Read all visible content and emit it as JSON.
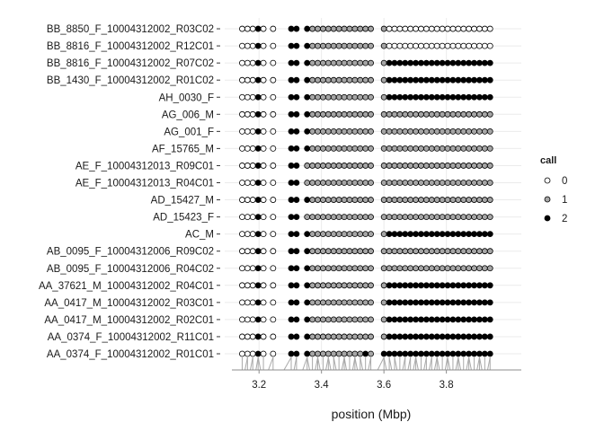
{
  "chart_data": {
    "type": "scatter",
    "xlabel": "position (Mbp)",
    "ylabel": "",
    "x_ticks": [
      "3.2",
      "3.4",
      "3.6",
      "3.8"
    ],
    "x_tick_values": [
      3.2,
      3.4,
      3.6,
      3.8
    ],
    "xlim": [
      3.09,
      4.04
    ],
    "grid": true,
    "legend": {
      "title": "call",
      "position": "right",
      "entries": [
        "0",
        "1",
        "2"
      ]
    },
    "samples": [
      "AA_0374_F_10004312002_R01C01",
      "AA_0374_F_10004312002_R11C01",
      "AA_0417_M_10004312002_R02C01",
      "AA_0417_M_10004312002_R03C01",
      "AA_37621_M_10004312002_R04C01",
      "AB_0095_F_10004312006_R04C02",
      "AB_0095_F_10004312006_R09C02",
      "AC_M",
      "AD_15423_F",
      "AD_15427_M",
      "AE_F_10004312013_R04C01",
      "AE_F_10004312013_R09C01",
      "AF_15765_M",
      "AG_001_F",
      "AG_006_M",
      "AH_0030_F",
      "BB_1430_F_10004312002_R01C02",
      "BB_8816_F_10004312002_R07C02",
      "BB_8816_F_10004312002_R12C01",
      "BB_8850_F_10004312002_R03C02"
    ],
    "marker_positions": [
      3.146,
      3.163,
      3.18,
      3.197,
      3.214,
      3.245,
      3.303,
      3.32,
      3.354,
      3.371,
      3.388,
      3.405,
      3.422,
      3.439,
      3.456,
      3.473,
      3.49,
      3.507,
      3.524,
      3.541,
      3.558,
      3.6,
      3.617,
      3.634,
      3.651,
      3.668,
      3.685,
      3.702,
      3.719,
      3.736,
      3.753,
      3.77,
      3.787,
      3.804,
      3.821,
      3.838,
      3.855,
      3.872,
      3.889,
      3.906,
      3.923,
      3.94
    ],
    "calls": [
      "000200222111111111121222222222222222222222",
      "000200222111111111111122222222222222222222",
      "000200222111111111111122222222222222222222",
      "000200222111111111111122222222222222222222",
      "000200222111111111111122222222222222222222",
      "000200222111111111111111111111111111111111",
      "000200222111111111111111111111111111111111",
      "000200222111111111111122222222222222222222",
      "000200221111111111111111111111111111111111",
      "000200222111111111111111111111111111111111",
      "000200221111111111111111111111111111111111",
      "000200221111111111111111111111111111111111",
      "000200222111111111111111111111111111111111",
      "000200222111111111111111111111111111111111",
      "000200222111111111111111111111111111111111",
      "000200222111111111111122222222222222222222",
      "000200222111111111111122222222222222222222",
      "000200222111111111111122222222222222222222",
      "000200222111111111111100000000000000000000",
      "000200222111111111111100000000000000000000"
    ],
    "rug_positions": [
      3.146,
      3.155,
      3.163,
      3.172,
      3.18,
      3.19,
      3.197,
      3.205,
      3.214,
      3.23,
      3.245,
      3.28,
      3.303,
      3.312,
      3.32,
      3.34,
      3.354,
      3.362,
      3.371,
      3.38,
      3.388,
      3.396,
      3.405,
      3.414,
      3.422,
      3.43,
      3.439,
      3.447,
      3.456,
      3.465,
      3.473,
      3.48,
      3.49,
      3.5,
      3.507,
      3.515,
      3.524,
      3.532,
      3.541,
      3.55,
      3.558,
      3.58,
      3.6,
      3.608,
      3.617,
      3.625,
      3.634,
      3.642,
      3.651,
      3.66,
      3.668,
      3.677,
      3.685,
      3.694,
      3.702,
      3.71,
      3.719,
      3.728,
      3.736,
      3.745,
      3.753,
      3.762,
      3.77,
      3.778,
      3.787,
      3.796,
      3.804,
      3.812,
      3.821,
      3.83,
      3.838,
      3.846,
      3.855,
      3.864,
      3.872,
      3.88,
      3.889,
      3.898,
      3.906,
      3.914,
      3.923,
      3.932,
      3.94
    ]
  },
  "colors": {
    "call_0": "#ffffff",
    "call_1": "#a6a6a6",
    "call_2": "#000000",
    "grid": "#ebebeb",
    "rug": "#a9a9a9",
    "axis": "#8c8c8c"
  }
}
